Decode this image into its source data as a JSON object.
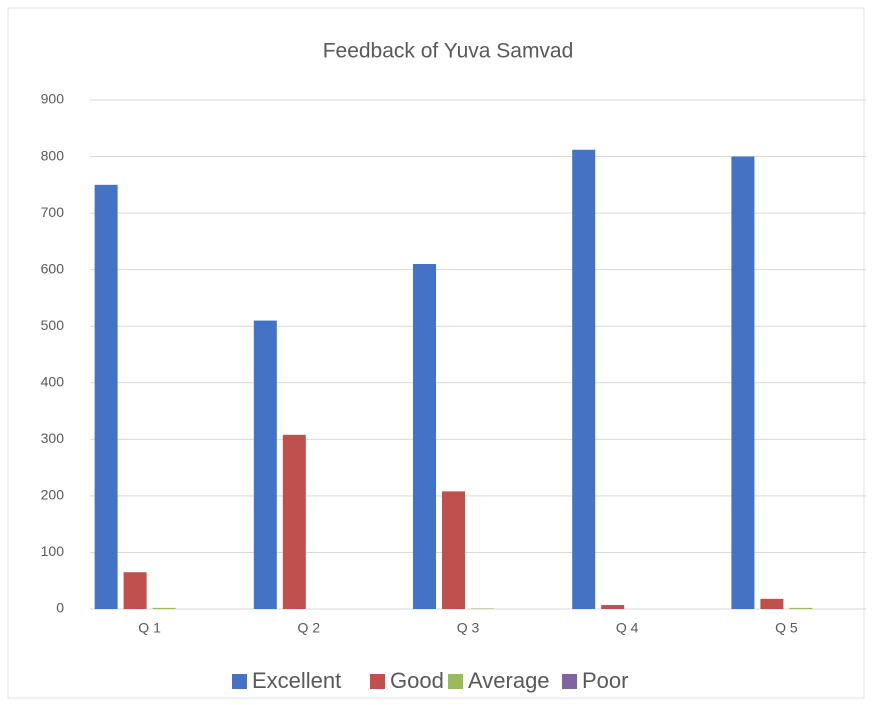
{
  "chart_data": {
    "type": "bar",
    "title": "Feedback of Yuva Samvad",
    "categories": [
      "Q 1",
      "Q 2",
      "Q 3",
      "Q 4",
      "Q 5"
    ],
    "series": [
      {
        "name": "Excellent",
        "color": "#4472c4",
        "values": [
          750,
          510,
          610,
          812,
          800
        ]
      },
      {
        "name": "Good",
        "color": "#c0504d",
        "values": [
          65,
          308,
          208,
          7,
          18
        ]
      },
      {
        "name": "Average",
        "color": "#9bbb59",
        "values": [
          2,
          0,
          1,
          0,
          2
        ]
      },
      {
        "name": "Poor",
        "color": "#8064a2",
        "values": [
          0,
          0,
          0,
          0,
          0
        ]
      }
    ],
    "ylim": [
      0,
      900
    ],
    "yticks": [
      0,
      100,
      200,
      300,
      400,
      500,
      600,
      700,
      800,
      900
    ],
    "grid": true,
    "legend": "bottom"
  }
}
